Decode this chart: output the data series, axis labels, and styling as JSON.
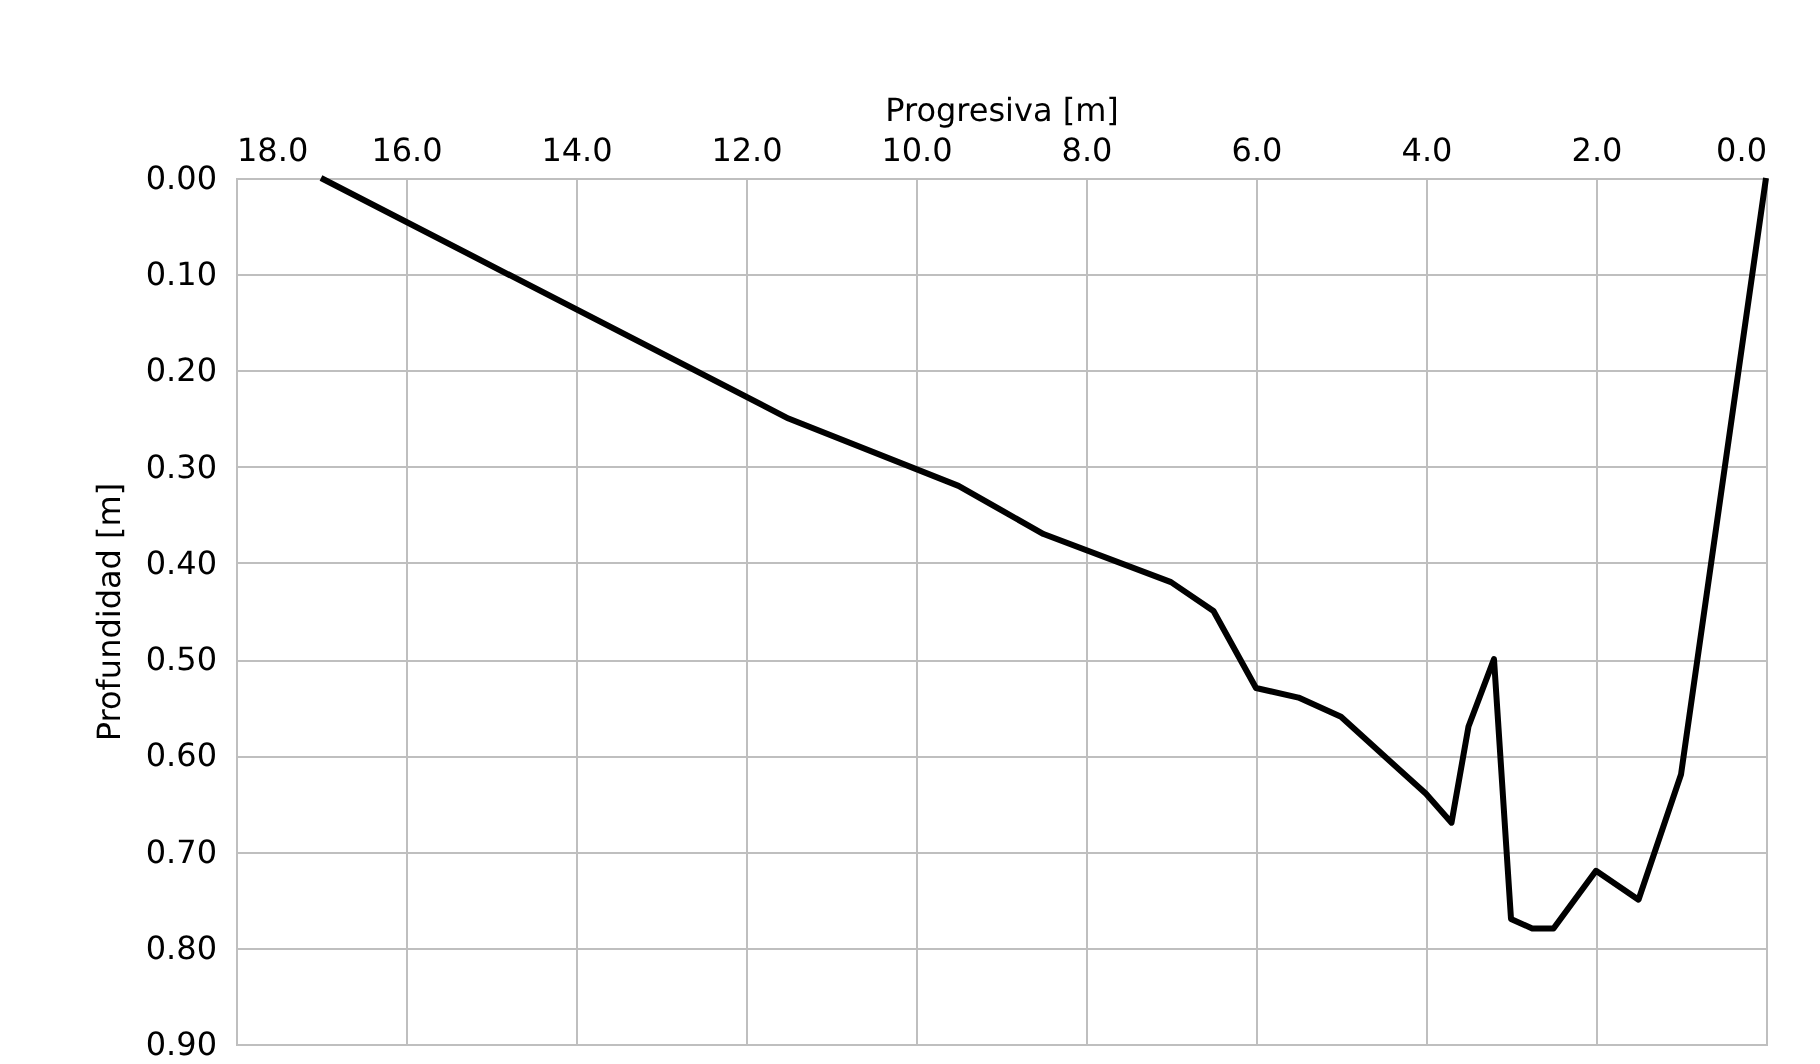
{
  "chart_data": {
    "type": "line",
    "xlabel": "Progresiva [m]",
    "ylabel": "Profundidad [m]",
    "x": [
      17.0,
      11.5,
      9.5,
      8.5,
      7.0,
      6.5,
      6.0,
      5.5,
      5.0,
      4.0,
      3.7,
      3.5,
      3.2,
      3.0,
      2.75,
      2.5,
      2.0,
      1.5,
      1.0,
      0.0
    ],
    "series": [
      {
        "color": "#000000",
        "values": [
          0.0,
          0.25,
          0.32,
          0.37,
          0.42,
          0.45,
          0.53,
          0.54,
          0.56,
          0.64,
          0.67,
          0.57,
          0.5,
          0.77,
          0.78,
          0.78,
          0.72,
          0.75,
          0.62,
          0.0
        ]
      }
    ],
    "xlim": [
      18,
      0
    ],
    "xticks": [
      {
        "value": 18,
        "label": "18.0"
      },
      {
        "value": 16,
        "label": "16.0"
      },
      {
        "value": 14,
        "label": "14.0"
      },
      {
        "value": 12,
        "label": "12.0"
      },
      {
        "value": 10,
        "label": "10.0"
      },
      {
        "value": 8,
        "label": "8.0"
      },
      {
        "value": 6,
        "label": "6.0"
      },
      {
        "value": 4,
        "label": "4.0"
      },
      {
        "value": 2,
        "label": "2.0"
      },
      {
        "value": 0,
        "label": "0.0"
      }
    ],
    "ylim": [
      0.9,
      0
    ],
    "yticks": [
      {
        "value": 0,
        "label": "0.00"
      },
      {
        "value": 0.1,
        "label": "0.10"
      },
      {
        "value": 0.2,
        "label": "0.20"
      },
      {
        "value": 0.3,
        "label": "0.30"
      },
      {
        "value": 0.4,
        "label": "0.40"
      },
      {
        "value": 0.5,
        "label": "0.50"
      },
      {
        "value": 0.6,
        "label": "0.60"
      },
      {
        "value": 0.7,
        "label": "0.70"
      },
      {
        "value": 0.8,
        "label": "0.80"
      },
      {
        "value": 0.9,
        "label": "0.90"
      }
    ],
    "grid": true,
    "marker": "none",
    "line_style": "solid"
  }
}
